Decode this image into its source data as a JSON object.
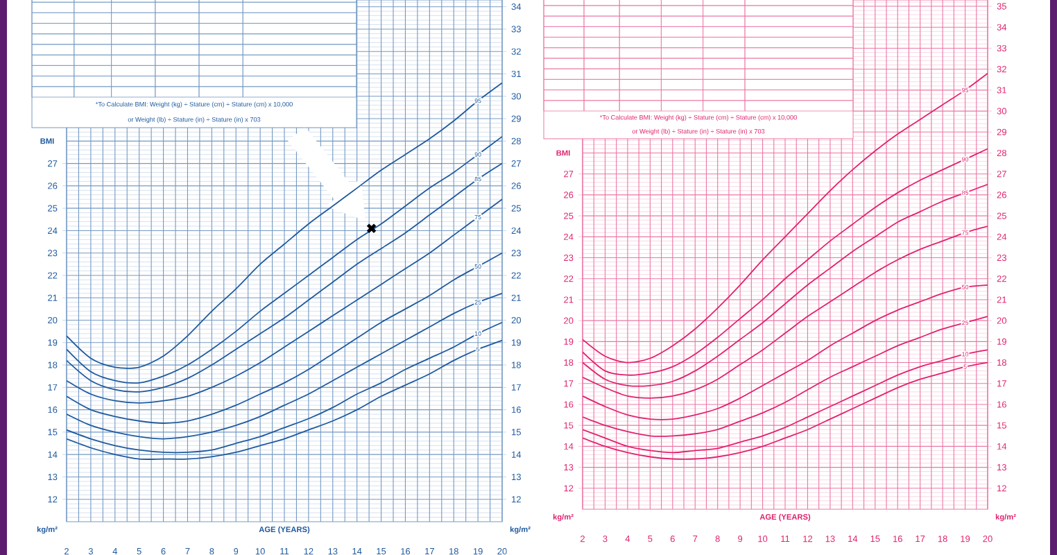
{
  "chart_data": [
    {
      "type": "line",
      "xlabel": "AGE (YEARS)",
      "ylabel": "BMI",
      "y2label": "kg/m²",
      "annotations": [
        "kg/m²",
        "*To Calculate BMI: Weight (kg) ÷ Stature (cm) ÷ Stature (cm) x 10,000",
        "or Weight (lb) ÷ Stature (in) ÷ Stature (in) x 703"
      ],
      "x": [
        2,
        3,
        4,
        5,
        6,
        7,
        8,
        9,
        10,
        11,
        12,
        13,
        14,
        15,
        16,
        17,
        18,
        19,
        20
      ],
      "series": [
        {
          "name": "95",
          "color": "#1f5a9e",
          "values": [
            19.3,
            18.3,
            17.9,
            17.9,
            18.4,
            19.3,
            20.4,
            21.4,
            22.5,
            23.4,
            24.3,
            25.1,
            25.9,
            26.7,
            27.4,
            28.1,
            28.9,
            29.8,
            30.6
          ]
        },
        {
          "name": "90",
          "color": "#1f5a9e",
          "values": [
            18.7,
            17.7,
            17.3,
            17.2,
            17.5,
            18.0,
            18.7,
            19.5,
            20.4,
            21.2,
            22.0,
            22.8,
            23.6,
            24.3,
            25.1,
            25.9,
            26.6,
            27.4,
            28.2
          ]
        },
        {
          "name": "85",
          "color": "#1f5a9e",
          "values": [
            18.2,
            17.3,
            16.9,
            16.8,
            17.0,
            17.4,
            18.0,
            18.7,
            19.4,
            20.1,
            20.9,
            21.7,
            22.5,
            23.2,
            23.9,
            24.7,
            25.5,
            26.3,
            27.0
          ]
        },
        {
          "name": "75",
          "color": "#1f5a9e",
          "values": [
            17.3,
            16.7,
            16.4,
            16.3,
            16.4,
            16.6,
            17.0,
            17.5,
            18.1,
            18.8,
            19.5,
            20.2,
            20.9,
            21.6,
            22.3,
            23.0,
            23.8,
            24.6,
            25.4
          ]
        },
        {
          "name": "50",
          "color": "#1f5a9e",
          "values": [
            16.6,
            16.0,
            15.7,
            15.5,
            15.4,
            15.5,
            15.8,
            16.2,
            16.7,
            17.2,
            17.8,
            18.5,
            19.2,
            19.9,
            20.5,
            21.1,
            21.8,
            22.4,
            23.0
          ]
        },
        {
          "name": "25",
          "color": "#1f5a9e",
          "values": [
            15.8,
            15.3,
            15.0,
            14.8,
            14.7,
            14.8,
            15.0,
            15.3,
            15.7,
            16.2,
            16.7,
            17.3,
            17.9,
            18.5,
            19.1,
            19.7,
            20.3,
            20.8,
            21.2
          ]
        },
        {
          "name": "10",
          "color": "#1f5a9e",
          "values": [
            15.1,
            14.7,
            14.4,
            14.2,
            14.1,
            14.1,
            14.2,
            14.5,
            14.8,
            15.2,
            15.6,
            16.1,
            16.7,
            17.2,
            17.8,
            18.3,
            18.8,
            19.4,
            19.9
          ]
        },
        {
          "name": "5",
          "color": "#1f5a9e",
          "values": [
            14.7,
            14.3,
            14.0,
            13.8,
            13.8,
            13.8,
            13.9,
            14.1,
            14.4,
            14.7,
            15.1,
            15.5,
            16.0,
            16.6,
            17.1,
            17.6,
            18.2,
            18.7,
            19.1
          ]
        },
        {
          "type": "scatter",
          "color": "#000000",
          "marker": "cross",
          "x": [
            14.6
          ],
          "values": [
            24.1
          ]
        }
      ],
      "xlim": [
        2,
        20
      ],
      "xticks": [
        2,
        {
          "value": 2.5,
          "label": null
        },
        3,
        {
          "value": 3.5,
          "label": null
        },
        4,
        {
          "value": 4.5,
          "label": null
        },
        5,
        {
          "value": 5.5,
          "label": null
        },
        6,
        {
          "value": 6.5,
          "label": null
        },
        7,
        {
          "value": 7.5,
          "label": null
        },
        8,
        {
          "value": 8.5,
          "label": null
        },
        9,
        {
          "value": 9.5,
          "label": null
        },
        10,
        {
          "value": 10.5,
          "label": null
        },
        11,
        {
          "value": 11.5,
          "label": null
        },
        12,
        {
          "value": 12.5,
          "label": null
        },
        13,
        {
          "value": 13.5,
          "label": null
        },
        14,
        {
          "value": 14.5,
          "label": null
        },
        15,
        {
          "value": 15.5,
          "label": null
        },
        16,
        {
          "value": 16.5,
          "label": null
        },
        17,
        {
          "value": 17.5,
          "label": null
        },
        18,
        {
          "value": 18.5,
          "label": null
        },
        19,
        {
          "value": 19.5,
          "label": null
        },
        20
      ],
      "ylim": [
        11,
        34.3
      ],
      "yticks": [
        12,
        13,
        14,
        15,
        16,
        17,
        18,
        19,
        20,
        21,
        22,
        23,
        24,
        25,
        26,
        27
      ],
      "y2lim": [
        11,
        34.3
      ],
      "y2ticks": [
        {
          "value": 11.2,
          "label": null
        },
        {
          "value": 11.4,
          "label": null
        },
        {
          "value": 11.6,
          "label": null
        },
        {
          "value": 11.8,
          "label": null
        },
        12,
        {
          "value": 12.2,
          "label": null
        },
        {
          "value": 12.4,
          "label": null
        },
        {
          "value": 12.6,
          "label": null
        },
        {
          "value": 12.8,
          "label": null
        },
        13,
        {
          "value": 13.2,
          "label": null
        },
        {
          "value": 13.4,
          "label": null
        },
        {
          "value": 13.6,
          "label": null
        },
        {
          "value": 13.8,
          "label": null
        },
        14,
        {
          "value": 14.2,
          "label": null
        },
        {
          "value": 14.4,
          "label": null
        },
        {
          "value": 14.6,
          "label": null
        },
        {
          "value": 14.8,
          "label": null
        },
        15,
        {
          "value": 15.2,
          "label": null
        },
        {
          "value": 15.4,
          "label": null
        },
        {
          "value": 15.6,
          "label": null
        },
        {
          "value": 15.8,
          "label": null
        },
        16,
        {
          "value": 16.2,
          "label": null
        },
        {
          "value": 16.4,
          "label": null
        },
        {
          "value": 16.6,
          "label": null
        },
        {
          "value": 16.8,
          "label": null
        },
        17,
        {
          "value": 17.2,
          "label": null
        },
        {
          "value": 17.4,
          "label": null
        },
        {
          "value": 17.6,
          "label": null
        },
        {
          "value": 17.8,
          "label": null
        },
        18,
        {
          "value": 18.2,
          "label": null
        },
        {
          "value": 18.4,
          "label": null
        },
        {
          "value": 18.6,
          "label": null
        },
        {
          "value": 18.8,
          "label": null
        },
        19,
        {
          "value": 19.2,
          "label": null
        },
        {
          "value": 19.4,
          "label": null
        },
        {
          "value": 19.6,
          "label": null
        },
        {
          "value": 19.8,
          "label": null
        },
        20,
        {
          "value": 20.2,
          "label": null
        },
        {
          "value": 20.4,
          "label": null
        },
        {
          "value": 20.6,
          "label": null
        },
        {
          "value": 20.8,
          "label": null
        },
        21,
        {
          "value": 21.2,
          "label": null
        },
        {
          "value": 21.4,
          "label": null
        },
        {
          "value": 21.6,
          "label": null
        },
        {
          "value": 21.8,
          "label": null
        },
        22,
        {
          "value": 22.2,
          "label": null
        },
        {
          "value": 22.4,
          "label": null
        },
        {
          "value": 22.6,
          "label": null
        },
        {
          "value": 22.8,
          "label": null
        },
        23,
        {
          "value": 23.2,
          "label": null
        },
        {
          "value": 23.4,
          "label": null
        },
        {
          "value": 23.6,
          "label": null
        },
        {
          "value": 23.8,
          "label": null
        },
        24,
        {
          "value": 24.2,
          "label": null
        },
        {
          "value": 24.4,
          "label": null
        },
        {
          "value": 24.6,
          "label": null
        },
        {
          "value": 24.8,
          "label": null
        },
        25,
        {
          "value": 25.2,
          "label": null
        },
        {
          "value": 25.4,
          "label": null
        },
        {
          "value": 25.6,
          "label": null
        },
        {
          "value": 25.8,
          "label": null
        },
        26,
        {
          "value": 26.2,
          "label": null
        },
        {
          "value": 26.4,
          "label": null
        },
        {
          "value": 26.6,
          "label": null
        },
        {
          "value": 26.8,
          "label": null
        },
        27,
        {
          "value": 27.2,
          "label": null
        },
        {
          "value": 27.4,
          "label": null
        },
        {
          "value": 27.6,
          "label": null
        },
        {
          "value": 27.8,
          "label": null
        },
        28,
        {
          "value": 28.2,
          "label": null
        },
        {
          "value": 28.4,
          "label": null
        },
        {
          "value": 28.6,
          "label": null
        },
        {
          "value": 28.8,
          "label": null
        },
        29,
        {
          "value": 29.2,
          "label": null
        },
        {
          "value": 29.4,
          "label": null
        },
        {
          "value": 29.6,
          "label": null
        },
        {
          "value": 29.8,
          "label": null
        },
        30,
        {
          "value": 30.2,
          "label": null
        },
        {
          "value": 30.4,
          "label": null
        },
        {
          "value": 30.6,
          "label": null
        },
        {
          "value": 30.8,
          "label": null
        },
        31,
        {
          "value": 31.2,
          "label": null
        },
        {
          "value": 31.4,
          "label": null
        },
        {
          "value": 31.6,
          "label": null
        },
        {
          "value": 31.8,
          "label": null
        },
        32,
        {
          "value": 32.2,
          "label": null
        },
        {
          "value": 32.4,
          "label": null
        },
        {
          "value": 32.6,
          "label": null
        },
        {
          "value": 32.8,
          "label": null
        },
        33,
        {
          "value": 33.2,
          "label": null
        },
        {
          "value": 33.4,
          "label": null
        },
        {
          "value": 33.6,
          "label": null
        },
        {
          "value": 33.8,
          "label": null
        },
        34,
        {
          "value": 34.2,
          "label": null
        }
      ],
      "grid": true
    },
    {
      "type": "line",
      "xlabel": "AGE (YEARS)",
      "ylabel": "BMI",
      "y2label": "kg/m²",
      "annotations": [
        "kg/m²",
        "*To Calculate BMI: Weight (kg) ÷ Stature (cm) ÷ Stature (cm) x 10,000",
        "or Weight (lb) ÷ Stature (in) ÷ Stature (in) x 703"
      ],
      "x": [
        2,
        3,
        4,
        5,
        6,
        7,
        8,
        9,
        10,
        11,
        12,
        13,
        14,
        15,
        16,
        17,
        18,
        19,
        20
      ],
      "series": [
        {
          "name": "95",
          "color": "#e0226e",
          "values": [
            19.1,
            18.3,
            18.0,
            18.2,
            18.8,
            19.6,
            20.6,
            21.7,
            22.9,
            24.0,
            25.1,
            26.2,
            27.2,
            28.1,
            28.9,
            29.6,
            30.3,
            31.0,
            31.8
          ]
        },
        {
          "name": "90",
          "color": "#e0226e",
          "values": [
            18.5,
            17.6,
            17.4,
            17.5,
            17.8,
            18.4,
            19.2,
            20.1,
            21.0,
            22.0,
            22.9,
            23.8,
            24.6,
            25.4,
            26.1,
            26.7,
            27.2,
            27.7,
            28.2
          ]
        },
        {
          "name": "85",
          "color": "#e0226e",
          "values": [
            18.0,
            17.2,
            16.9,
            16.9,
            17.1,
            17.6,
            18.3,
            19.1,
            19.9,
            20.8,
            21.7,
            22.5,
            23.3,
            24.0,
            24.7,
            25.2,
            25.7,
            26.1,
            26.5
          ]
        },
        {
          "name": "75",
          "color": "#e0226e",
          "values": [
            17.3,
            16.8,
            16.4,
            16.3,
            16.4,
            16.7,
            17.2,
            17.9,
            18.6,
            19.4,
            20.2,
            20.9,
            21.6,
            22.3,
            22.9,
            23.4,
            23.8,
            24.2,
            24.5
          ]
        },
        {
          "name": "50",
          "color": "#e0226e",
          "values": [
            16.4,
            15.9,
            15.5,
            15.3,
            15.3,
            15.5,
            15.8,
            16.3,
            16.9,
            17.5,
            18.1,
            18.8,
            19.4,
            20.0,
            20.5,
            20.9,
            21.3,
            21.6,
            21.7
          ]
        },
        {
          "name": "25",
          "color": "#e0226e",
          "values": [
            15.4,
            15.0,
            14.7,
            14.5,
            14.5,
            14.6,
            14.8,
            15.2,
            15.6,
            16.1,
            16.7,
            17.3,
            17.8,
            18.3,
            18.8,
            19.2,
            19.6,
            19.9,
            20.2
          ]
        },
        {
          "name": "10",
          "color": "#e0226e",
          "values": [
            14.8,
            14.4,
            14.0,
            13.8,
            13.7,
            13.8,
            13.9,
            14.2,
            14.5,
            14.9,
            15.4,
            15.9,
            16.4,
            16.9,
            17.4,
            17.8,
            18.1,
            18.4,
            18.6
          ]
        },
        {
          "name": "5",
          "color": "#e0226e",
          "values": [
            14.4,
            14.0,
            13.7,
            13.5,
            13.4,
            13.4,
            13.5,
            13.7,
            14.0,
            14.4,
            14.8,
            15.3,
            15.8,
            16.3,
            16.8,
            17.2,
            17.5,
            17.8,
            18.0
          ]
        }
      ],
      "xlim": [
        2,
        20
      ],
      "xticks": [
        2,
        {
          "value": 2.5,
          "label": null
        },
        3,
        {
          "value": 3.5,
          "label": null
        },
        4,
        {
          "value": 4.5,
          "label": null
        },
        5,
        {
          "value": 5.5,
          "label": null
        },
        6,
        {
          "value": 6.5,
          "label": null
        },
        7,
        {
          "value": 7.5,
          "label": null
        },
        8,
        {
          "value": 8.5,
          "label": null
        },
        9,
        {
          "value": 9.5,
          "label": null
        },
        10,
        {
          "value": 10.5,
          "label": null
        },
        11,
        {
          "value": 11.5,
          "label": null
        },
        12,
        {
          "value": 12.5,
          "label": null
        },
        13,
        {
          "value": 13.5,
          "label": null
        },
        14,
        {
          "value": 14.5,
          "label": null
        },
        15,
        {
          "value": 15.5,
          "label": null
        },
        16,
        {
          "value": 16.5,
          "label": null
        },
        17,
        {
          "value": 17.5,
          "label": null
        },
        18,
        {
          "value": 18.5,
          "label": null
        },
        19,
        {
          "value": 19.5,
          "label": null
        },
        20
      ],
      "ylim": [
        11,
        35.3
      ],
      "yticks": [
        12,
        13,
        14,
        15,
        16,
        17,
        18,
        19,
        20,
        21,
        22,
        23,
        24,
        25,
        26,
        27
      ],
      "y2lim": [
        11,
        35.3
      ],
      "y2ticks": [
        {
          "value": 11.2,
          "label": null
        },
        {
          "value": 11.4,
          "label": null
        },
        {
          "value": 11.6,
          "label": null
        },
        {
          "value": 11.8,
          "label": null
        },
        12,
        {
          "value": 12.2,
          "label": null
        },
        {
          "value": 12.4,
          "label": null
        },
        {
          "value": 12.6,
          "label": null
        },
        {
          "value": 12.8,
          "label": null
        },
        13,
        {
          "value": 13.2,
          "label": null
        },
        {
          "value": 13.4,
          "label": null
        },
        {
          "value": 13.6,
          "label": null
        },
        {
          "value": 13.8,
          "label": null
        },
        14,
        {
          "value": 14.2,
          "label": null
        },
        {
          "value": 14.4,
          "label": null
        },
        {
          "value": 14.6,
          "label": null
        },
        {
          "value": 14.8,
          "label": null
        },
        15,
        {
          "value": 15.2,
          "label": null
        },
        {
          "value": 15.4,
          "label": null
        },
        {
          "value": 15.6,
          "label": null
        },
        {
          "value": 15.8,
          "label": null
        },
        16,
        {
          "value": 16.2,
          "label": null
        },
        {
          "value": 16.4,
          "label": null
        },
        {
          "value": 16.6,
          "label": null
        },
        {
          "value": 16.8,
          "label": null
        },
        17,
        {
          "value": 17.2,
          "label": null
        },
        {
          "value": 17.4,
          "label": null
        },
        {
          "value": 17.6,
          "label": null
        },
        {
          "value": 17.8,
          "label": null
        },
        18,
        {
          "value": 18.2,
          "label": null
        },
        {
          "value": 18.4,
          "label": null
        },
        {
          "value": 18.6,
          "label": null
        },
        {
          "value": 18.8,
          "label": null
        },
        19,
        {
          "value": 19.2,
          "label": null
        },
        {
          "value": 19.4,
          "label": null
        },
        {
          "value": 19.6,
          "label": null
        },
        {
          "value": 19.8,
          "label": null
        },
        20,
        {
          "value": 20.2,
          "label": null
        },
        {
          "value": 20.4,
          "label": null
        },
        {
          "value": 20.6,
          "label": null
        },
        {
          "value": 20.8,
          "label": null
        },
        21,
        {
          "value": 21.2,
          "label": null
        },
        {
          "value": 21.4,
          "label": null
        },
        {
          "value": 21.6,
          "label": null
        },
        {
          "value": 21.8,
          "label": null
        },
        22,
        {
          "value": 22.2,
          "label": null
        },
        {
          "value": 22.4,
          "label": null
        },
        {
          "value": 22.6,
          "label": null
        },
        {
          "value": 22.8,
          "label": null
        },
        23,
        {
          "value": 23.2,
          "label": null
        },
        {
          "value": 23.4,
          "label": null
        },
        {
          "value": 23.6,
          "label": null
        },
        {
          "value": 23.8,
          "label": null
        },
        24,
        {
          "value": 24.2,
          "label": null
        },
        {
          "value": 24.4,
          "label": null
        },
        {
          "value": 24.6,
          "label": null
        },
        {
          "value": 24.8,
          "label": null
        },
        25,
        {
          "value": 25.2,
          "label": null
        },
        {
          "value": 25.4,
          "label": null
        },
        {
          "value": 25.6,
          "label": null
        },
        {
          "value": 25.8,
          "label": null
        },
        26,
        {
          "value": 26.2,
          "label": null
        },
        {
          "value": 26.4,
          "label": null
        },
        {
          "value": 26.6,
          "label": null
        },
        {
          "value": 26.8,
          "label": null
        },
        27,
        {
          "value": 27.2,
          "label": null
        },
        {
          "value": 27.4,
          "label": null
        },
        {
          "value": 27.6,
          "label": null
        },
        {
          "value": 27.8,
          "label": null
        },
        28,
        {
          "value": 28.2,
          "label": null
        },
        {
          "value": 28.4,
          "label": null
        },
        {
          "value": 28.6,
          "label": null
        },
        {
          "value": 28.8,
          "label": null
        },
        29,
        {
          "value": 29.2,
          "label": null
        },
        {
          "value": 29.4,
          "label": null
        },
        {
          "value": 29.6,
          "label": null
        },
        {
          "value": 29.8,
          "label": null
        },
        30,
        {
          "value": 30.2,
          "label": null
        },
        {
          "value": 30.4,
          "label": null
        },
        {
          "value": 30.6,
          "label": null
        },
        {
          "value": 30.8,
          "label": null
        },
        31,
        {
          "value": 31.2,
          "label": null
        },
        {
          "value": 31.4,
          "label": null
        },
        {
          "value": 31.6,
          "label": null
        },
        {
          "value": 31.8,
          "label": null
        },
        32,
        {
          "value": 32.2,
          "label": null
        },
        {
          "value": 32.4,
          "label": null
        },
        {
          "value": 32.6,
          "label": null
        },
        {
          "value": 32.8,
          "label": null
        },
        33,
        {
          "value": 33.2,
          "label": null
        },
        {
          "value": 33.4,
          "label": null
        },
        {
          "value": 33.6,
          "label": null
        },
        {
          "value": 33.8,
          "label": null
        },
        34,
        {
          "value": 34.2,
          "label": null
        },
        {
          "value": 34.4,
          "label": null
        },
        {
          "value": 34.6,
          "label": null
        },
        {
          "value": 34.8,
          "label": null
        },
        35,
        {
          "value": 35.2,
          "label": null
        }
      ],
      "grid": true
    }
  ]
}
